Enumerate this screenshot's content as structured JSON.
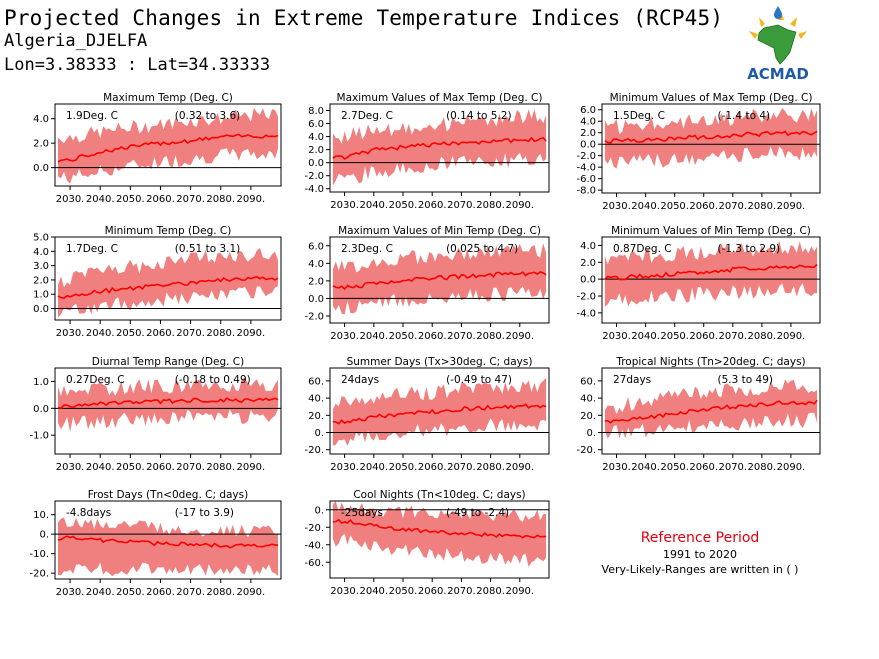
{
  "header": {
    "title": "Projected Changes in Extreme Temperature Indices (RCP45)",
    "station": "Algeria_DJELFA",
    "coords": "Lon=3.38333 : Lat=34.33333",
    "logo_text": "ACMAD"
  },
  "reference": {
    "title": "Reference Period",
    "years": "1991 to 2020",
    "note": "Very-Likely-Ranges are written in ( )"
  },
  "colors": {
    "band": "#f08080",
    "line": "#ff0000",
    "zero": "#000000",
    "logo_text": "#1f5aa8",
    "logo_africa": "#3a9b3a"
  },
  "chart_data": [
    {
      "type": "area",
      "title": "Maximum Temp (Deg. C)",
      "change": "1.9Deg. C",
      "range": "(0.32 to 3.6)",
      "x": [
        2030,
        2040,
        2050,
        2060,
        2070,
        2080,
        2090
      ],
      "xticks": [
        "2030.",
        "2040.",
        "2050.",
        "2060.",
        "2070.",
        "2080.",
        "2090."
      ],
      "ylim": [
        -1.5,
        5.2
      ],
      "yticks": [
        "4.0",
        "2.0",
        "0.0"
      ],
      "ytick_values": [
        4,
        2,
        0
      ],
      "series": [
        {
          "values": [
            0.6,
            1.3,
            1.7,
            2.0,
            2.2,
            2.5,
            2.6
          ]
        }
      ],
      "band_low": [
        -0.8,
        -0.3,
        0.1,
        0.5,
        0.7,
        1.0,
        1.1
      ],
      "band_high": [
        2.5,
        2.9,
        3.3,
        3.5,
        3.9,
        4.0,
        4.3
      ]
    },
    {
      "type": "area",
      "title": "Maximum Values of Max Temp (Deg. C)",
      "change": "2.7Deg. C",
      "range": "(0.14 to 5.2)",
      "x": [
        2030,
        2040,
        2050,
        2060,
        2070,
        2080,
        2090
      ],
      "xticks": [
        "2030.",
        "2040.",
        "2050.",
        "2060.",
        "2070.",
        "2080.",
        "2090."
      ],
      "ylim": [
        -4.5,
        9.0
      ],
      "yticks": [
        "8.0",
        "6.0",
        "4.0",
        "2.0",
        "0.0",
        "-2.0",
        "-4.0"
      ],
      "ytick_values": [
        8,
        6,
        4,
        2,
        0,
        -2,
        -4
      ],
      "series": [
        {
          "values": [
            0.8,
            1.9,
            2.4,
            2.7,
            3.1,
            3.3,
            3.5
          ]
        }
      ],
      "band_low": [
        -2.5,
        -1.5,
        -0.8,
        -0.4,
        0.0,
        0.2,
        0.4
      ],
      "band_high": [
        4.0,
        5.0,
        5.3,
        5.8,
        6.2,
        6.5,
        7.0
      ]
    },
    {
      "type": "area",
      "title": "Minimum Values of Max Temp (Deg. C)",
      "change": "1.5Deg. C",
      "range": "(-1.4 to 4)",
      "x": [
        2030,
        2040,
        2050,
        2060,
        2070,
        2080,
        2090
      ],
      "xticks": [
        "2030.",
        "2040.",
        "2050.",
        "2060.",
        "2070.",
        "2080.",
        "2090."
      ],
      "ylim": [
        -8.5,
        7.0
      ],
      "yticks": [
        "6.0",
        "4.0",
        "2.0",
        "0.0",
        "-2.0",
        "-4.0",
        "-6.0",
        "-8.0"
      ],
      "ytick_values": [
        6,
        4,
        2,
        0,
        -2,
        -4,
        -6,
        -8
      ],
      "series": [
        {
          "values": [
            0.6,
            0.8,
            1.0,
            1.3,
            1.6,
            1.8,
            1.9
          ]
        }
      ],
      "band_low": [
        -3.0,
        -3.0,
        -2.8,
        -2.5,
        -2.0,
        -1.8,
        -1.6
      ],
      "band_high": [
        3.0,
        3.5,
        4.0,
        4.2,
        4.5,
        4.8,
        5.0
      ]
    },
    {
      "type": "area",
      "title": "Minimum Temp (Deg. C)",
      "change": "1.7Deg. C",
      "range": "(0.51 to 3.1)",
      "x": [
        2030,
        2040,
        2050,
        2060,
        2070,
        2080,
        2090
      ],
      "xticks": [
        "2030.",
        "2040.",
        "2050.",
        "2060.",
        "2070.",
        "2080.",
        "2090."
      ],
      "ylim": [
        -0.8,
        5.0
      ],
      "yticks": [
        "5.0",
        "4.0",
        "3.0",
        "2.0",
        "1.0",
        "0.0"
      ],
      "ytick_values": [
        5,
        4,
        3,
        2,
        1,
        0
      ],
      "series": [
        {
          "values": [
            0.8,
            1.2,
            1.4,
            1.6,
            1.8,
            2.0,
            2.1
          ]
        }
      ],
      "band_low": [
        -0.2,
        0.2,
        0.4,
        0.6,
        0.8,
        1.0,
        1.1
      ],
      "band_high": [
        2.0,
        2.6,
        2.9,
        3.1,
        3.5,
        3.7,
        3.8
      ]
    },
    {
      "type": "area",
      "title": "Maximum Values of Min Temp (Deg. C)",
      "change": "2.3Deg. C",
      "range": "(0.025 to 4.7)",
      "x": [
        2030,
        2040,
        2050,
        2060,
        2070,
        2080,
        2090
      ],
      "xticks": [
        "2030.",
        "2040.",
        "2050.",
        "2060.",
        "2070.",
        "2080.",
        "2090."
      ],
      "ylim": [
        -2.8,
        7.0
      ],
      "yticks": [
        "6.0",
        "4.0",
        "2.0",
        "0.0",
        "-2.0"
      ],
      "ytick_values": [
        6,
        4,
        2,
        0,
        -2
      ],
      "series": [
        {
          "values": [
            1.2,
            1.7,
            2.0,
            2.3,
            2.5,
            2.7,
            2.8
          ]
        }
      ],
      "band_low": [
        -1.0,
        -0.5,
        -0.2,
        0.1,
        0.3,
        0.5,
        0.6
      ],
      "band_high": [
        3.5,
        4.2,
        4.5,
        4.8,
        5.0,
        5.3,
        5.5
      ]
    },
    {
      "type": "area",
      "title": "Minimum Values of Min Temp (Deg. C)",
      "change": "0.87Deg. C",
      "range": "(-1.3 to 2.9)",
      "x": [
        2030,
        2040,
        2050,
        2060,
        2070,
        2080,
        2090
      ],
      "xticks": [
        "2030.",
        "2040.",
        "2050.",
        "2060.",
        "2070.",
        "2080.",
        "2090."
      ],
      "ylim": [
        -5.2,
        5.0
      ],
      "yticks": [
        "4.0",
        "2.0",
        "0.0",
        "-2.0",
        "-4.0"
      ],
      "ytick_values": [
        4,
        2,
        0,
        -2,
        -4
      ],
      "series": [
        {
          "values": [
            0.1,
            0.4,
            0.6,
            0.8,
            1.1,
            1.3,
            1.5
          ]
        }
      ],
      "band_low": [
        -2.5,
        -2.2,
        -2.0,
        -1.8,
        -1.6,
        -1.4,
        -1.3
      ],
      "band_high": [
        2.5,
        2.8,
        3.0,
        3.2,
        3.4,
        3.6,
        3.8
      ]
    },
    {
      "type": "area",
      "title": "Diurnal Temp Range (Deg. C)",
      "change": "0.27Deg. C",
      "range": "(-0.18 to 0.49)",
      "x": [
        2030,
        2040,
        2050,
        2060,
        2070,
        2080,
        2090
      ],
      "xticks": [
        "2030.",
        "2040.",
        "2050.",
        "2060.",
        "2070.",
        "2080.",
        "2090."
      ],
      "ylim": [
        -1.7,
        1.5
      ],
      "yticks": [
        "1.0",
        "0.0",
        "-1.0"
      ],
      "ytick_values": [
        1,
        0,
        -1
      ],
      "series": [
        {
          "values": [
            0.05,
            0.15,
            0.2,
            0.25,
            0.3,
            0.3,
            0.3
          ]
        }
      ],
      "band_low": [
        -0.6,
        -0.5,
        -0.4,
        -0.35,
        -0.3,
        -0.3,
        -0.3
      ],
      "band_high": [
        0.6,
        0.7,
        0.8,
        0.8,
        0.9,
        0.9,
        0.9
      ]
    },
    {
      "type": "area",
      "title": "Summer Days (Tx>30deg. C; days)",
      "change": "24days",
      "range": "(-0.49 to 47)",
      "x": [
        2030,
        2040,
        2050,
        2060,
        2070,
        2080,
        2090
      ],
      "xticks": [
        "2030.",
        "2040.",
        "2050.",
        "2060.",
        "2070.",
        "2080.",
        "2090."
      ],
      "ylim": [
        -25,
        75
      ],
      "yticks": [
        "60.",
        "40.",
        "20.",
        "0.",
        "-20."
      ],
      "ytick_values": [
        60,
        40,
        20,
        0,
        -20
      ],
      "series": [
        {
          "values": [
            12,
            18,
            21,
            24,
            27,
            29,
            31
          ]
        }
      ],
      "band_low": [
        -8,
        -4,
        0,
        2,
        6,
        8,
        10
      ],
      "band_high": [
        35,
        40,
        44,
        47,
        50,
        52,
        55
      ]
    },
    {
      "type": "area",
      "title": "Tropical Nights (Tn>20deg. C; days)",
      "change": "27days",
      "range": "(5.3 to 49)",
      "x": [
        2030,
        2040,
        2050,
        2060,
        2070,
        2080,
        2090
      ],
      "xticks": [
        "2030.",
        "2040.",
        "2050.",
        "2060.",
        "2070.",
        "2080.",
        "2090."
      ],
      "ylim": [
        -25,
        75
      ],
      "yticks": [
        "60.",
        "40.",
        "20.",
        "0.",
        "-20."
      ],
      "ytick_values": [
        60,
        40,
        20,
        0,
        -20
      ],
      "series": [
        {
          "values": [
            12,
            18,
            22,
            26,
            30,
            33,
            35
          ]
        }
      ],
      "band_low": [
        0,
        2,
        5,
        8,
        10,
        12,
        14
      ],
      "band_high": [
        30,
        38,
        42,
        46,
        50,
        52,
        55
      ]
    },
    {
      "type": "area",
      "title": "Frost Days (Tn<0deg. C; days)",
      "change": "-4.8days",
      "range": "(-17 to 3.9)",
      "x": [
        2030,
        2040,
        2050,
        2060,
        2070,
        2080,
        2090
      ],
      "xticks": [
        "2030.",
        "2040.",
        "2050.",
        "2060.",
        "2070.",
        "2080.",
        "2090."
      ],
      "ylim": [
        -23,
        17
      ],
      "yticks": [
        "10.",
        "0.",
        "-10.",
        "-20."
      ],
      "ytick_values": [
        10,
        0,
        -10,
        -20
      ],
      "series": [
        {
          "values": [
            -2,
            -3,
            -4,
            -5,
            -5,
            -6,
            -6
          ]
        }
      ],
      "band_low": [
        -18,
        -18,
        -18,
        -18,
        -18,
        -18,
        -18
      ],
      "band_high": [
        6,
        5,
        4,
        3,
        2,
        2,
        1
      ]
    },
    {
      "type": "area",
      "title": "Cool Nights (Tn<10deg. C; days)",
      "change": "-25days",
      "range": "(-49 to -2.4)",
      "x": [
        2030,
        2040,
        2050,
        2060,
        2070,
        2080,
        2090
      ],
      "xticks": [
        "2030.",
        "2040.",
        "2050.",
        "2060.",
        "2070.",
        "2080.",
        "2090."
      ],
      "ylim": [
        -78,
        10
      ],
      "yticks": [
        "0.",
        "-20.",
        "-40.",
        "-60."
      ],
      "ytick_values": [
        0,
        -20,
        -40,
        -60
      ],
      "series": [
        {
          "values": [
            -13,
            -18,
            -22,
            -25,
            -27,
            -29,
            -30
          ]
        }
      ],
      "band_low": [
        -35,
        -42,
        -46,
        -50,
        -52,
        -55,
        -58
      ],
      "band_high": [
        3,
        0,
        -2,
        -4,
        -5,
        -6,
        -7
      ]
    }
  ]
}
